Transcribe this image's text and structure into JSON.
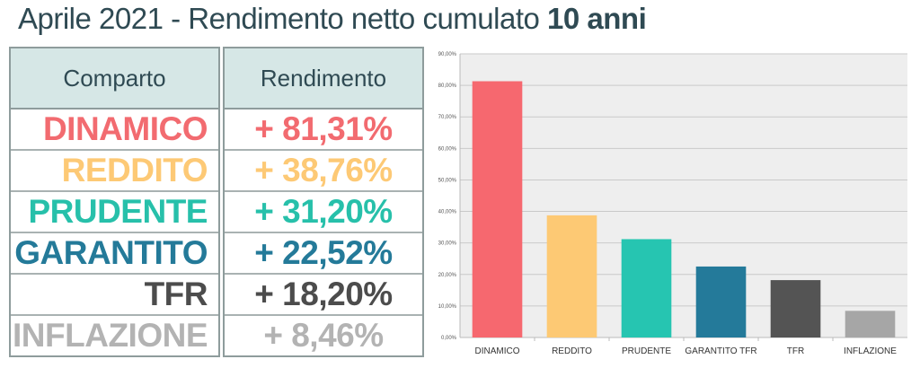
{
  "title": {
    "main": "Aprile 2021 - Rendimento netto cumulato",
    "bold": "10 anni"
  },
  "table": {
    "header_comparto": "Comparto",
    "header_rendimento": "Rendimento",
    "rows": [
      {
        "comparto": "DINAMICO",
        "rendimento": "+ 81,31%",
        "color": "#f26b70"
      },
      {
        "comparto": "REDDITO",
        "rendimento": "+ 38,76%",
        "color": "#fdc975"
      },
      {
        "comparto": "PRUDENTE",
        "rendimento": "+ 31,20%",
        "color": "#27c0aa"
      },
      {
        "comparto": "GARANTITO",
        "rendimento": "+ 22,52%",
        "color": "#247a99"
      },
      {
        "comparto": "TFR",
        "rendimento": "+ 18,20%",
        "color": "#4c4c4c"
      },
      {
        "comparto": "INFLAZIONE",
        "rendimento": "+ 8,46%",
        "color": "#b3b3b3"
      }
    ]
  },
  "chart_data": {
    "type": "bar",
    "categories": [
      "DINAMICO",
      "REDDITO",
      "PRUDENTE",
      "GARANTITO TFR",
      "TFR",
      "INFLAZIONE"
    ],
    "values": [
      81.31,
      38.76,
      31.2,
      22.52,
      18.2,
      8.46
    ],
    "colors": [
      "#f6686f",
      "#fdc974",
      "#26c5b1",
      "#247a9a",
      "#545454",
      "#a6a6a6"
    ],
    "ylim": [
      0,
      90
    ],
    "yticks": [
      "0,00%",
      "10,00%",
      "20,00%",
      "30,00%",
      "40,00%",
      "50,00%",
      "60,00%",
      "70,00%",
      "80,00%",
      "90,00%"
    ],
    "grid": true,
    "background": "#eeeeee"
  }
}
